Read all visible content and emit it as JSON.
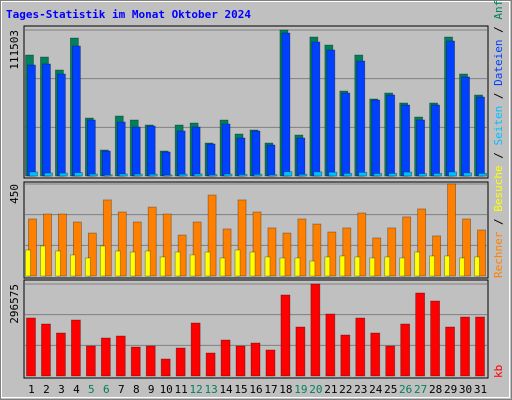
{
  "chart_data": [
    {
      "type": "bar",
      "title": "Tages-Statistik im Monat Oktober 2024",
      "ylim": [
        0,
        111503
      ],
      "yticks": [
        111503
      ],
      "series": [
        {
          "name": "Anfragen",
          "color": "#00805C",
          "values": [
            92408,
            90880,
            80952,
            105391,
            44295,
            19856,
            45822,
            42767,
            38949,
            19093,
            38949,
            40476,
            25202,
            42767,
            32075,
            35130,
            25202,
            111503,
            31312,
            106155,
            100045,
            64915,
            92408,
            58806,
            63387,
            55750,
            45058,
            55750,
            106155,
            77898,
            61860
          ]
        },
        {
          "name": "Dateien",
          "color": "#0040FF",
          "values": [
            84771,
            85535,
            77898,
            99281,
            42767,
            19093,
            41240,
            37421,
            38185,
            18329,
            34367,
            37421,
            24438,
            39712,
            29021,
            34367,
            23675,
            109212,
            29021,
            102336,
            96226,
            63387,
            87826,
            58041,
            61860,
            54223,
            42767,
            54223,
            103099,
            75607,
            60332
          ]
        },
        {
          "name": "Seiten",
          "color": "#00C0FF",
          "values": [
            3100,
            2300,
            2200,
            2600,
            1500,
            900,
            1600,
            1500,
            1400,
            800,
            1400,
            1600,
            1000,
            1500,
            1200,
            1300,
            1000,
            3300,
            1300,
            3200,
            2900,
            2000,
            2800,
            1900,
            2000,
            3000,
            1800,
            2000,
            3100,
            2400,
            2000
          ]
        }
      ]
    },
    {
      "type": "bar",
      "ylim": [
        0,
        450
      ],
      "yticks": [
        450
      ],
      "series": [
        {
          "name": "Rechner",
          "color": "#FF8000",
          "values": [
            279,
            303,
            303,
            264,
            210,
            372,
            313,
            264,
            337,
            303,
            200,
            264,
            396,
            230,
            372,
            313,
            235,
            210,
            279,
            254,
            215,
            235,
            308,
            186,
            235,
            289,
            328,
            196,
            450,
            279,
            225
          ]
        },
        {
          "name": "Besuche",
          "color": "#FFFF00",
          "values": [
            127,
            147,
            122,
            103,
            88,
            147,
            122,
            117,
            122,
            93,
            117,
            103,
            117,
            88,
            127,
            117,
            93,
            88,
            88,
            73,
            93,
            98,
            93,
            88,
            93,
            88,
            117,
            98,
            98,
            88,
            93
          ]
        }
      ]
    },
    {
      "type": "bar",
      "ylim": [
        0,
        296575
      ],
      "yticks": [
        296575
      ],
      "categories": [
        "1",
        "2",
        "3",
        "4",
        "5",
        "6",
        "7",
        "8",
        "9",
        "10",
        "11",
        "12",
        "13",
        "14",
        "15",
        "16",
        "17",
        "18",
        "19",
        "20",
        "21",
        "22",
        "23",
        "24",
        "25",
        "26",
        "27",
        "28",
        "29",
        "30",
        "31"
      ],
      "category_colors": [
        "#000000",
        "#000000",
        "#000000",
        "#000000",
        "#00805C",
        "#00805C",
        "#000000",
        "#000000",
        "#000000",
        "#000000",
        "#000000",
        "#00805C",
        "#00805C",
        "#000000",
        "#000000",
        "#000000",
        "#000000",
        "#000000",
        "#00805C",
        "#00805C",
        "#000000",
        "#000000",
        "#000000",
        "#000000",
        "#000000",
        "#00805C",
        "#00805C",
        "#000000",
        "#000000",
        "#000000",
        "#000000"
      ],
      "series": [
        {
          "name": "kb",
          "color": "#FF0000",
          "values": [
            186992,
            167648,
            138632,
            180544,
            96720,
            122512,
            128960,
            93496,
            96720,
            54808,
            90272,
            170872,
            74152,
            116064,
            96720,
            106392,
            83824,
            261144,
            157976,
            296575,
            199888,
            132184,
            186992,
            138632,
            96720,
            167648,
            267592,
            241800,
            157976,
            190216,
            190216
          ]
        }
      ]
    }
  ]
}
